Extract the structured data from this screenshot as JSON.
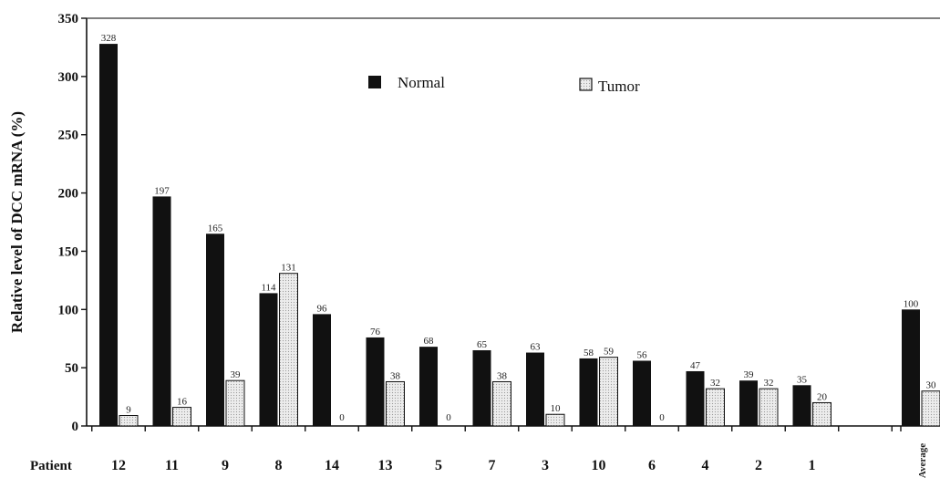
{
  "chart_data": {
    "type": "bar",
    "ylabel": "Relative level of DCC mRNA (%)",
    "xlabel_prefix": "Patient",
    "ylim": [
      0,
      350
    ],
    "yticks": [
      0,
      50,
      100,
      150,
      200,
      250,
      300,
      350
    ],
    "categories": [
      "12",
      "11",
      "9",
      "8",
      "14",
      "13",
      "5",
      "7",
      "3",
      "10",
      "6",
      "4",
      "2",
      "1",
      "Average"
    ],
    "series": [
      {
        "name": "Normal",
        "color": "#111111",
        "values": [
          328,
          197,
          165,
          114,
          96,
          76,
          68,
          65,
          63,
          58,
          56,
          47,
          39,
          35,
          100
        ]
      },
      {
        "name": "Tumor",
        "color": "#e4e4e4",
        "values": [
          9,
          16,
          39,
          131,
          0,
          38,
          0,
          38,
          10,
          59,
          0,
          32,
          32,
          20,
          30
        ]
      }
    ],
    "legend_position": "top-center",
    "grid": false
  }
}
